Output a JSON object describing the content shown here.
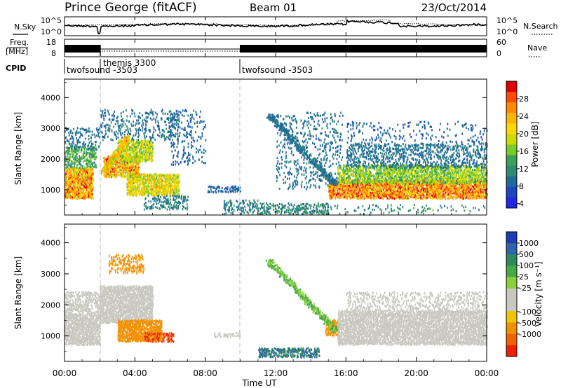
{
  "title": {
    "station": "Prince George (fitACF)",
    "beam": "Beam 01",
    "date": "23/Oct/2014"
  },
  "panels": {
    "noise": {
      "left_label": "N.Sky",
      "left_ticks": [
        "10^5",
        "10^0"
      ],
      "right_ticks": [
        "10^5",
        "10^0"
      ],
      "right_label": "N.Search"
    },
    "freq": {
      "left_label_1": "Freq.",
      "left_label_2": "[MHz]",
      "left_ticks": [
        "18",
        "8"
      ],
      "right_ticks": [
        "60",
        "0"
      ],
      "right_label": "Nave"
    },
    "cpid": {
      "label": "CPID",
      "programs": [
        "twofsound -3503",
        "themis 3300",
        "twofsound -3503"
      ]
    }
  },
  "axes": {
    "ylabel": "Slant Range [km]",
    "yticks": [
      "4000",
      "3000",
      "2000",
      "1000"
    ],
    "xticks": [
      "00:00",
      "04:00",
      "08:00",
      "12:00",
      "16:00",
      "20:00",
      "00:00"
    ],
    "xlabel": "Time UT"
  },
  "colorbars": {
    "power": {
      "label": "Power [dB]",
      "ticks": [
        "28",
        "24",
        "20",
        "16",
        "12",
        "8",
        "4"
      ],
      "colors": [
        "#e00000",
        "#ff4a00",
        "#ff8a00",
        "#ffb400",
        "#ffd800",
        "#c8dc00",
        "#78cc28",
        "#3aa05a",
        "#2f8a72",
        "#1e6a9a",
        "#1e46c0",
        "#1e28e6"
      ]
    },
    "velocity": {
      "label": "Velocity [m s⁻¹]",
      "ticks": [
        "1000",
        "500",
        "100",
        "25",
        "-25",
        "-100",
        "-500",
        "-1000"
      ],
      "colors": [
        "#1e3cb4",
        "#2f64aa",
        "#2e8a5a",
        "#44aa44",
        "#8ccf3c",
        "#c8c8c0",
        "#c8c8c0",
        "#f0c400",
        "#f29000",
        "#ef6400",
        "#ee2000"
      ]
    }
  },
  "chart_data": [
    {
      "type": "heatmap",
      "name": "power",
      "x_range": [
        "00:00",
        "24:00"
      ],
      "y_range": [
        180,
        4600
      ],
      "cpid_changes_hours": [
        2.0,
        10.0
      ],
      "blobs": [
        {
          "t0": 0.0,
          "t1": 1.6,
          "r0": 700,
          "r1": 1700,
          "v": 22,
          "density": 0.95
        },
        {
          "t0": 0.0,
          "t1": 1.8,
          "r0": 1700,
          "r1": 2400,
          "v": 11,
          "density": 0.55
        },
        {
          "t0": 0.0,
          "t1": 2.0,
          "r0": 2300,
          "r1": 3000,
          "v": 6,
          "density": 0.25
        },
        {
          "t0": 2.2,
          "t1": 4.2,
          "r0": 1400,
          "r1": 2100,
          "v": 22,
          "density": 0.85
        },
        {
          "t0": 3.0,
          "t1": 5.0,
          "r0": 1900,
          "r1": 2600,
          "v": 16,
          "density": 0.8
        },
        {
          "t0": 3.5,
          "t1": 6.5,
          "r0": 800,
          "r1": 1500,
          "v": 18,
          "density": 0.85
        },
        {
          "t0": 4.5,
          "t1": 7.0,
          "r0": 350,
          "r1": 800,
          "v": 7,
          "density": 0.4
        },
        {
          "t0": 2.0,
          "t1": 6.5,
          "r0": 2600,
          "r1": 3600,
          "v": 6,
          "density": 0.2
        },
        {
          "t0": 6.0,
          "t1": 8.0,
          "r0": 1800,
          "r1": 3600,
          "v": 5,
          "density": 0.15
        },
        {
          "t0": 8.0,
          "t1": 10.0,
          "r0": 900,
          "r1": 1100,
          "v": 5,
          "density": 0.5
        },
        {
          "t0": 9.0,
          "t1": 11.0,
          "r0": 200,
          "r1": 650,
          "v": 7,
          "density": 0.3
        },
        {
          "t0": 11.0,
          "t1": 15.0,
          "r0": 200,
          "r1": 550,
          "v": 8,
          "density": 0.4
        },
        {
          "t0": 12.0,
          "t1": 15.8,
          "r0": 1000,
          "r1": 3500,
          "v": 6,
          "density": 0.15
        },
        {
          "t0": 15.0,
          "t1": 24.0,
          "r0": 700,
          "r1": 1300,
          "v": 24,
          "density": 0.9
        },
        {
          "t0": 15.5,
          "t1": 24.0,
          "r0": 1200,
          "r1": 1800,
          "v": 14,
          "density": 0.75
        },
        {
          "t0": 16.0,
          "t1": 24.0,
          "r0": 1700,
          "r1": 2500,
          "v": 6,
          "density": 0.35
        },
        {
          "t0": 16.0,
          "t1": 24.0,
          "r0": 2500,
          "r1": 3200,
          "v": 5,
          "density": 0.1
        },
        {
          "t0": 12.0,
          "t1": 24.0,
          "r0": 180,
          "r1": 500,
          "v": 9,
          "density": 0.1
        }
      ],
      "streaks": [
        {
          "t0": 11.6,
          "r0": 3400,
          "t1": 15.4,
          "r1": 1150,
          "v": 6,
          "width": 160
        },
        {
          "t0": 2.2,
          "r0": 1550,
          "t1": 3.6,
          "r1": 2700,
          "v": 20,
          "width": 180
        }
      ]
    },
    {
      "type": "heatmap",
      "name": "velocity",
      "x_range": [
        "00:00",
        "24:00"
      ],
      "y_range": [
        180,
        4600
      ],
      "blobs": [
        {
          "t0": 0.0,
          "t1": 2.0,
          "r0": 700,
          "r1": 1700,
          "v": 0,
          "density": 0.9
        },
        {
          "t0": 0.0,
          "t1": 2.0,
          "r0": 1700,
          "r1": 2400,
          "v": 0,
          "density": 0.5
        },
        {
          "t0": 2.0,
          "t1": 5.0,
          "r0": 1400,
          "r1": 2600,
          "v": 0,
          "density": 0.9
        },
        {
          "t0": 3.0,
          "t1": 5.5,
          "r0": 800,
          "r1": 1500,
          "v": -200,
          "density": 0.9
        },
        {
          "t0": 4.5,
          "t1": 6.2,
          "r0": 800,
          "r1": 1100,
          "v": -600,
          "density": 0.5
        },
        {
          "t0": 2.5,
          "t1": 4.5,
          "r0": 3000,
          "r1": 3600,
          "v": -150,
          "density": 0.35
        },
        {
          "t0": 8.5,
          "t1": 10.0,
          "r0": 950,
          "r1": 1100,
          "v": 0,
          "density": 0.5
        },
        {
          "t0": 11.0,
          "t1": 14.5,
          "r0": 300,
          "r1": 600,
          "v": 300,
          "density": 0.6
        },
        {
          "t0": 14.8,
          "t1": 15.6,
          "r0": 1000,
          "r1": 1500,
          "v": -200,
          "density": 0.7
        },
        {
          "t0": 15.5,
          "t1": 24.0,
          "r0": 700,
          "r1": 1800,
          "v": 0,
          "density": 0.85
        },
        {
          "t0": 16.0,
          "t1": 24.0,
          "r0": 1800,
          "r1": 2400,
          "v": 0,
          "density": 0.3
        }
      ],
      "streaks": [
        {
          "t0": 11.6,
          "r0": 3400,
          "t1": 15.4,
          "r1": 1150,
          "v": 60,
          "width": 160
        }
      ]
    }
  ]
}
